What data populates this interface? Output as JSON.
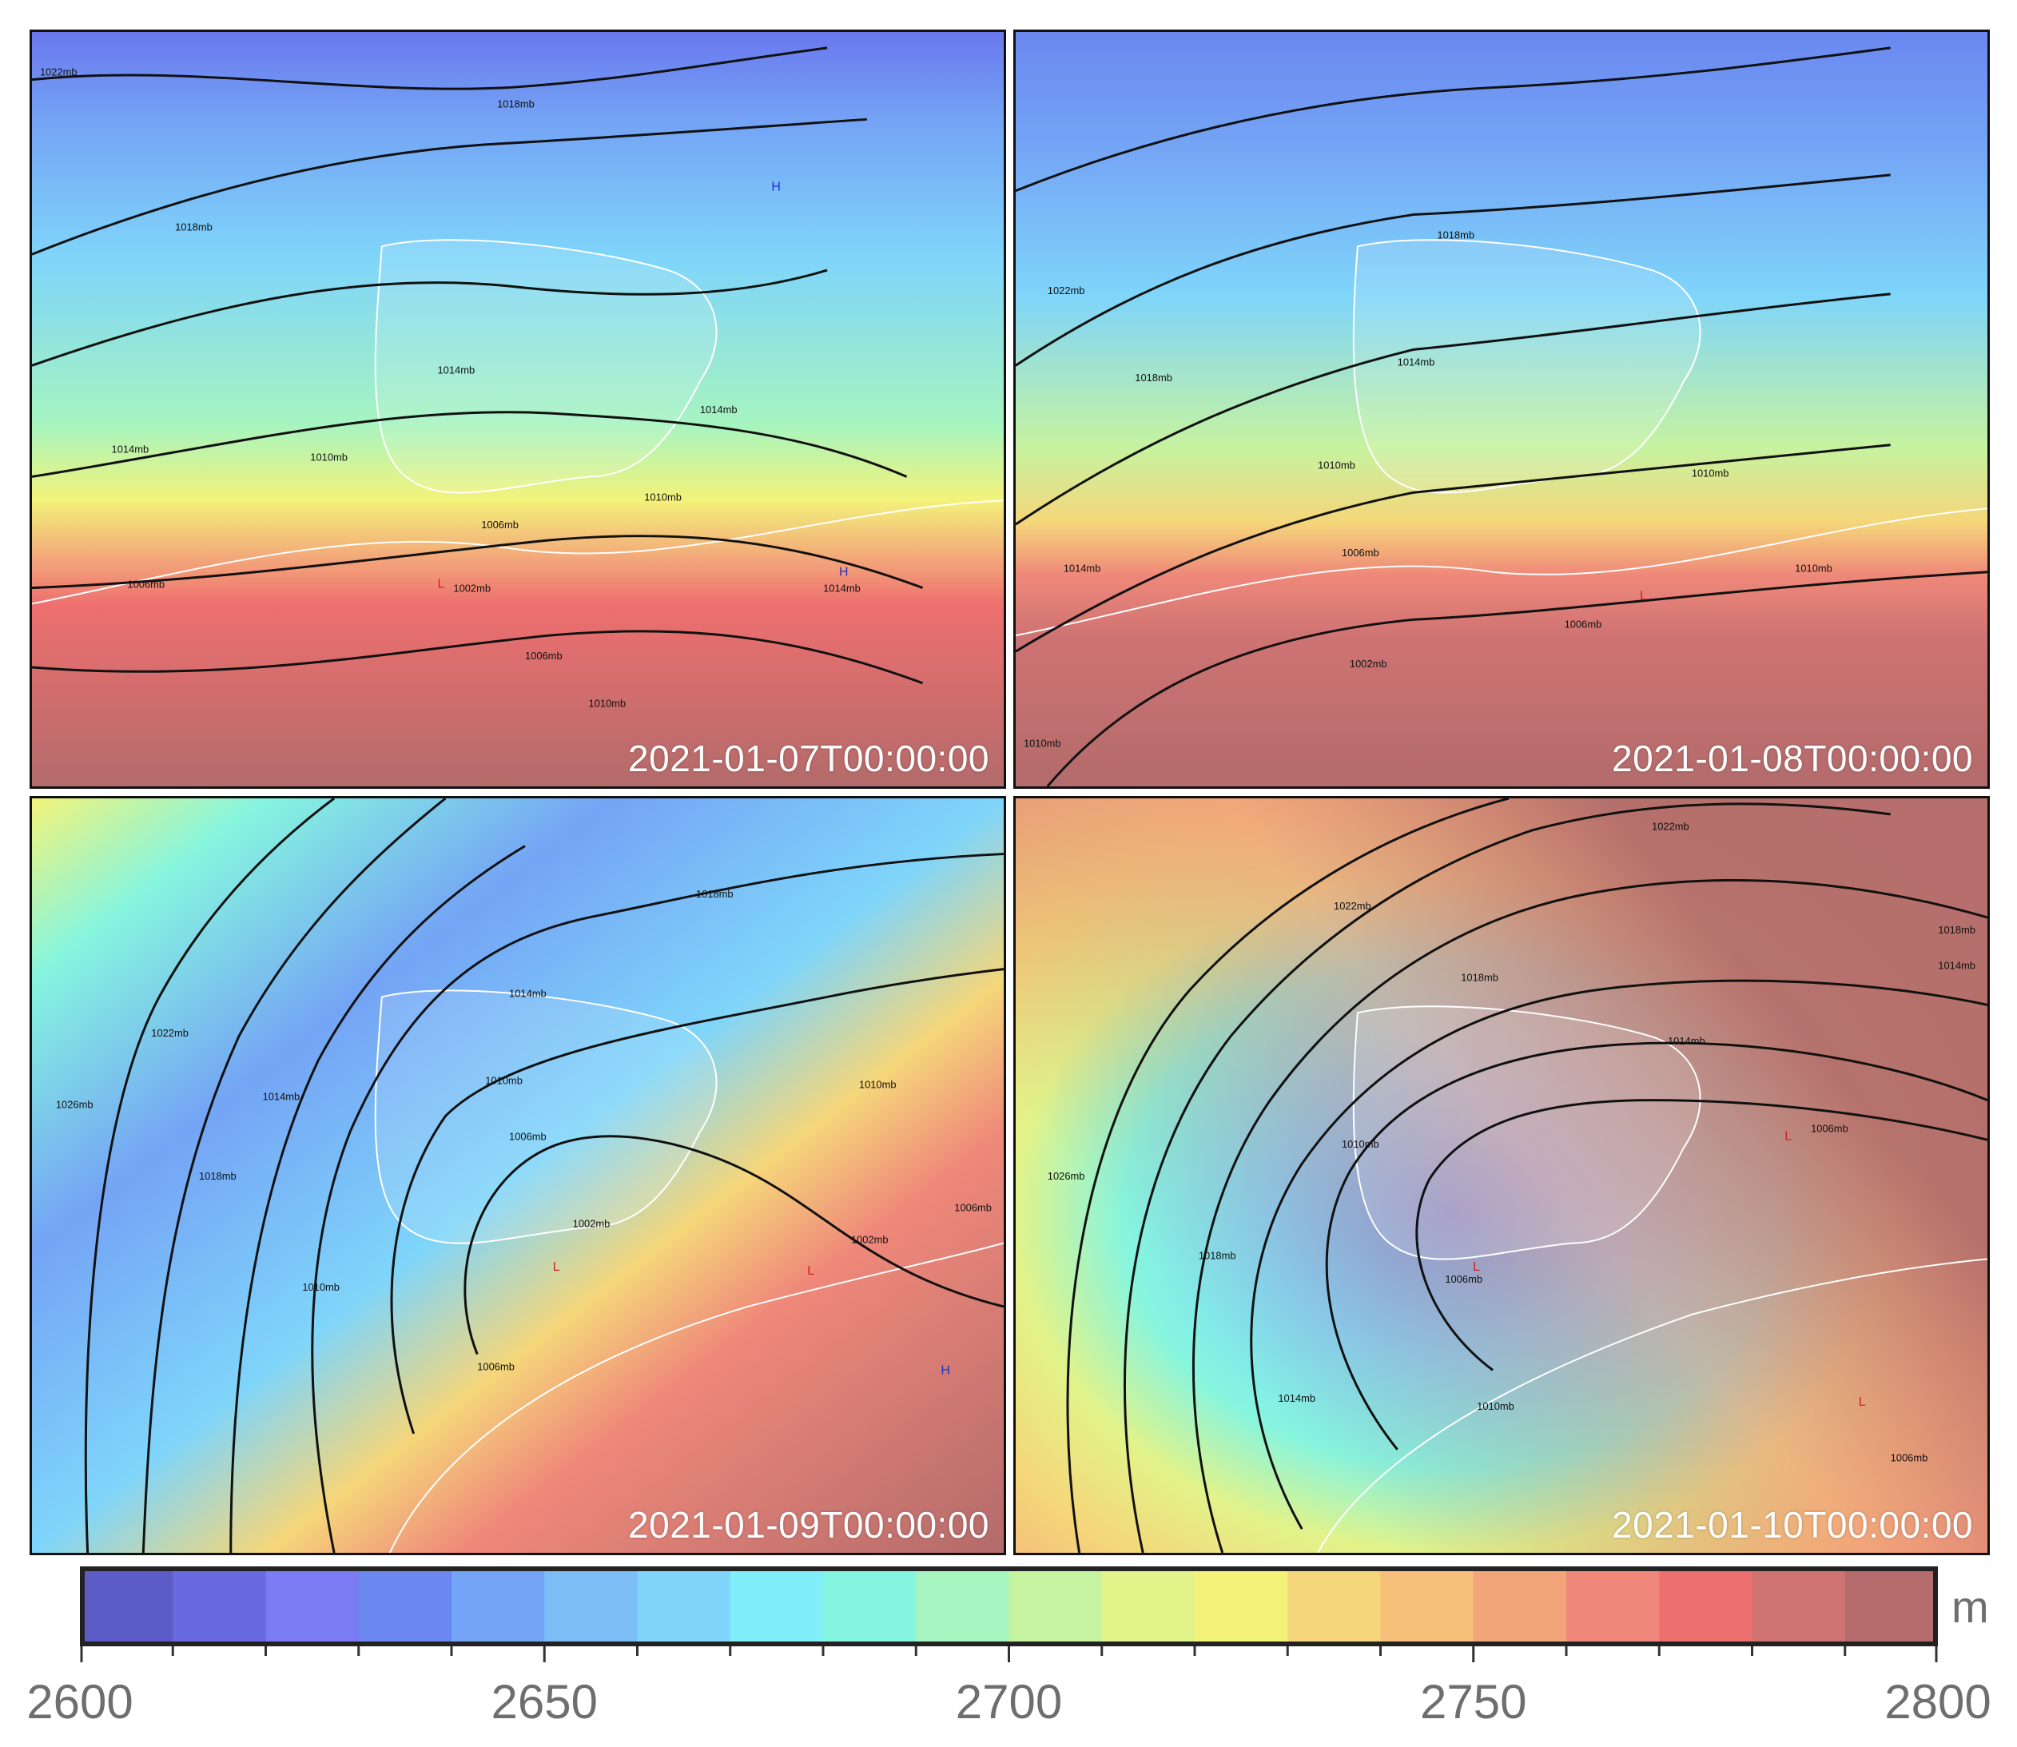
{
  "panels": [
    {
      "timestamp": "2021-01-07T00:00:00",
      "isobars": [
        "1022mb",
        "1018mb",
        "1018mb",
        "1014mb",
        "1014mb",
        "1014mb",
        "1010mb",
        "1010mb",
        "1010mb",
        "1006mb",
        "1006mb",
        "1006mb",
        "1002mb",
        "1014mb"
      ],
      "markers": [
        {
          "type": "H"
        },
        {
          "type": "L"
        },
        {
          "type": "H"
        }
      ]
    },
    {
      "timestamp": "2021-01-08T00:00:00",
      "isobars": [
        "1022mb",
        "1018mb",
        "1018mb",
        "1014mb",
        "1014mb",
        "1010mb",
        "1010mb",
        "1006mb",
        "1006mb",
        "1002mb",
        "1010mb",
        "1010mb"
      ],
      "markers": [
        {
          "type": "L"
        }
      ]
    },
    {
      "timestamp": "2021-01-09T00:00:00",
      "isobars": [
        "1026mb",
        "1022mb",
        "1018mb",
        "1014mb",
        "1010mb",
        "1018mb",
        "1014mb",
        "1010mb",
        "1006mb",
        "1002mb",
        "1002mb",
        "1006mb",
        "1010mb",
        "1006mb"
      ],
      "markers": [
        {
          "type": "L"
        },
        {
          "type": "L"
        },
        {
          "type": "H"
        }
      ]
    },
    {
      "timestamp": "2021-01-10T00:00:00",
      "isobars": [
        "1026mb",
        "1022mb",
        "1022mb",
        "1018mb",
        "1018mb",
        "1014mb",
        "1014mb",
        "1010mb",
        "1010mb",
        "1006mb",
        "1006mb",
        "1006mb",
        "1018mb",
        "1014mb"
      ],
      "markers": [
        {
          "type": "L"
        },
        {
          "type": "L"
        },
        {
          "type": "L"
        }
      ]
    }
  ],
  "colorbar": {
    "min": 2600,
    "max": 2800,
    "step": 10,
    "unit": "m",
    "tick_labels": [
      "2600",
      "2650",
      "2700",
      "2750",
      "2800"
    ],
    "colors": [
      "#5c5cc8",
      "#6a6ae0",
      "#7b7bf3",
      "#6a88f0",
      "#74a4f5",
      "#7dbdf6",
      "#7fd5fa",
      "#80eef8",
      "#86f5df",
      "#a6f4c0",
      "#c6f3a0",
      "#e2f38a",
      "#f3f37a",
      "#f5d67a",
      "#f6bf7a",
      "#f3a57a",
      "#ef887a",
      "#ee6f6f",
      "#cf7373",
      "#b36b6b"
    ]
  }
}
